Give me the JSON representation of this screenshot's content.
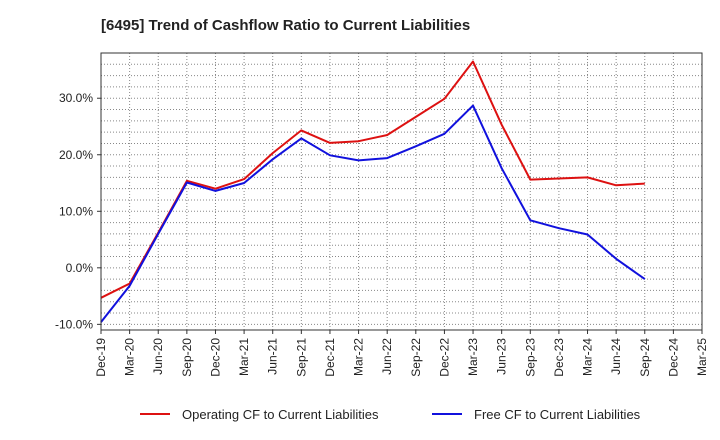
{
  "chart_data": {
    "type": "line",
    "title": "[6495]  Trend of Cashflow Ratio to Current Liabilities",
    "xlabel": "",
    "ylabel": "",
    "x": [
      "Dec-19",
      "Mar-20",
      "Jun-20",
      "Sep-20",
      "Dec-20",
      "Mar-21",
      "Jun-21",
      "Sep-21",
      "Dec-21",
      "Mar-22",
      "Jun-22",
      "Sep-22",
      "Dec-22",
      "Mar-23",
      "Jun-23",
      "Sep-23",
      "Dec-23",
      "Mar-24",
      "Jun-24",
      "Sep-24",
      "Dec-24",
      "Mar-25"
    ],
    "ylim": [
      -11,
      38
    ],
    "yticks": [
      -10,
      0,
      10,
      20,
      30
    ],
    "ytick_labels": [
      "-10.0%",
      "0.0%",
      "10.0%",
      "20.0%",
      "30.0%"
    ],
    "grid": true,
    "legend_position": "bottom",
    "series": [
      {
        "name": "Operating CF to Current Liabilities",
        "color": "#dd1111",
        "values": [
          -5.3,
          -2.8,
          6.2,
          15.4,
          14.0,
          15.7,
          20.3,
          24.3,
          22.1,
          22.4,
          23.5,
          26.7,
          29.9,
          36.5,
          25.3,
          15.6,
          15.8,
          16.0,
          14.6,
          14.9,
          null,
          null
        ]
      },
      {
        "name": "Free CF to Current Liabilities",
        "color": "#1111dd",
        "values": [
          -9.6,
          -3.2,
          6.0,
          15.1,
          13.6,
          15.0,
          19.2,
          22.9,
          19.9,
          19.0,
          19.4,
          21.5,
          23.7,
          28.7,
          17.6,
          8.4,
          7.0,
          5.9,
          1.6,
          -2.0,
          null,
          null
        ]
      }
    ]
  }
}
